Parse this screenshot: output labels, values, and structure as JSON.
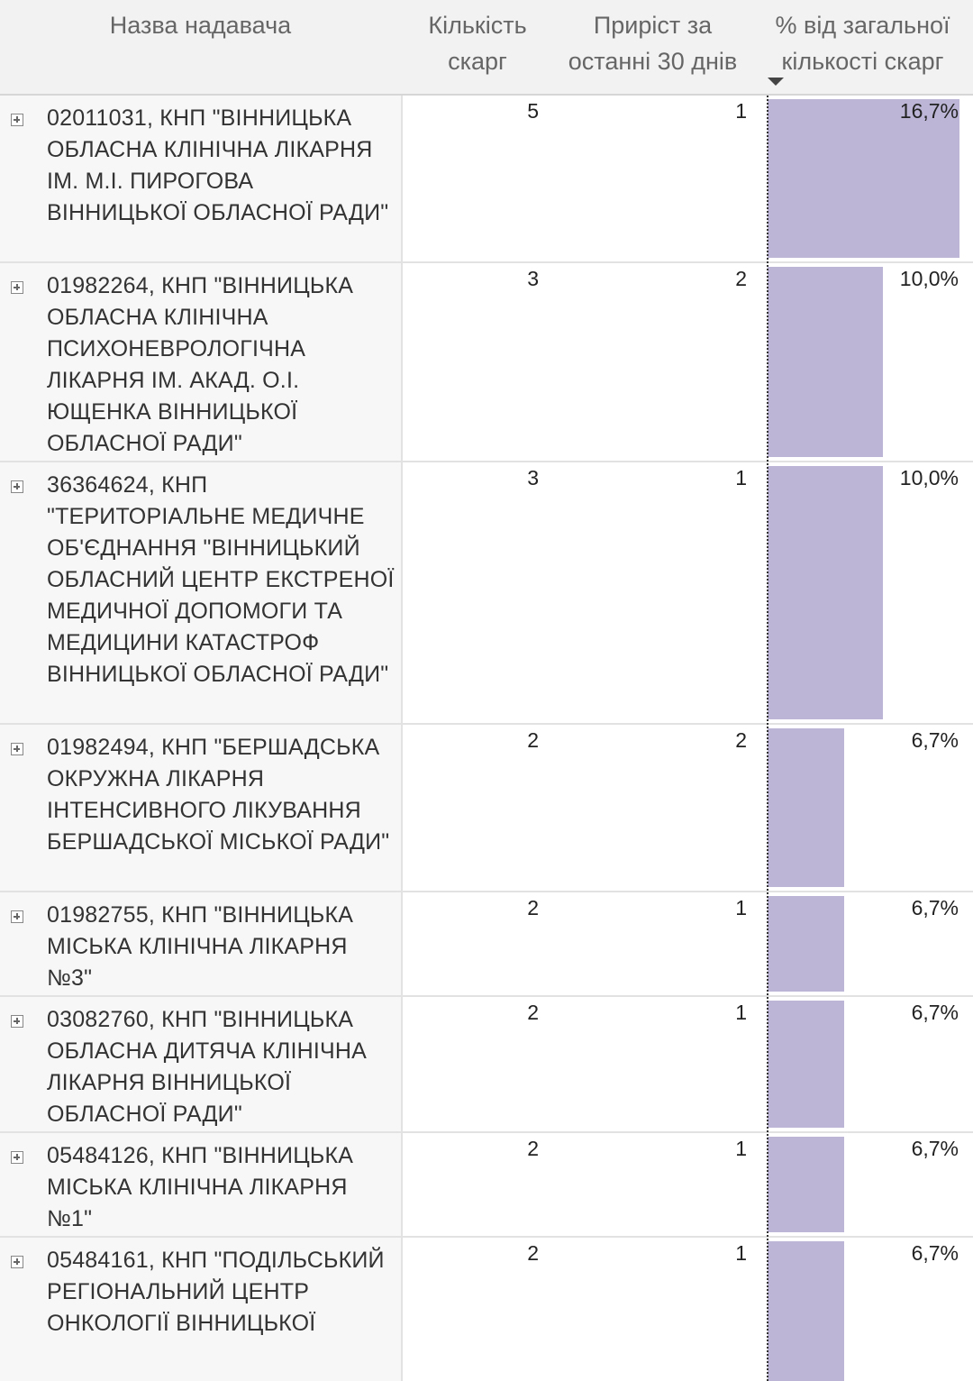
{
  "columns": {
    "name": "Назва надавача",
    "count": "Кількість\nскарг",
    "growth": "Приріст за\nостанні 30 днів",
    "percent": "% від загальної\nкількості скарг"
  },
  "bar_color": "#bcb5d6",
  "rows": [
    {
      "name": "02011031, КНП \"ВІННИЦЬКА ОБЛАСНА КЛІНІЧНА ЛІКАРНЯ ІМ. М.І. ПИРОГОВА ВІННИЦЬКОЇ ОБЛАСНОЇ РАДИ\"",
      "count": "5",
      "growth": "1",
      "percent_label": "16,7%",
      "percent": 16.7
    },
    {
      "name": "01982264, КНП \"ВІННИЦЬКА ОБЛАСНА КЛІНІЧНА ПСИХОНЕВРОЛОГІЧНА ЛІКАРНЯ ІМ. АКАД. О.І. ЮЩЕНКА ВІННИЦЬКОЇ ОБЛАСНОЇ РАДИ\"",
      "count": "3",
      "growth": "2",
      "percent_label": "10,0%",
      "percent": 10.0
    },
    {
      "name": "36364624, КНП \"ТЕРИТОРІАЛЬНЕ МЕДИЧНЕ ОБ'ЄДНАННЯ \"ВІННИЦЬКИЙ ОБЛАСНИЙ ЦЕНТР ЕКСТРЕНОЇ МЕДИЧНОЇ ДОПОМОГИ ТА МЕДИЦИНИ КАТАСТРОФ ВІННИЦЬКОЇ ОБЛАСНОЇ РАДИ\"",
      "count": "3",
      "growth": "1",
      "percent_label": "10,0%",
      "percent": 10.0
    },
    {
      "name": "01982494, КНП \"БЕРШАДСЬКА ОКРУЖНА ЛІКАРНЯ ІНТЕНСИВНОГО ЛІКУВАННЯ БЕРШАДСЬКОЇ МІСЬКОЇ РАДИ\"",
      "count": "2",
      "growth": "2",
      "percent_label": "6,7%",
      "percent": 6.7
    },
    {
      "name": "01982755, КНП \"ВІННИЦЬКА МІСЬКА КЛІНІЧНА ЛІКАРНЯ №3\"",
      "count": "2",
      "growth": "1",
      "percent_label": "6,7%",
      "percent": 6.7
    },
    {
      "name": "03082760, КНП \"ВІННИЦЬКА ОБЛАСНА ДИТЯЧА КЛІНІЧНА ЛІКАРНЯ ВІННИЦЬКОЇ ОБЛАСНОЇ РАДИ\"",
      "count": "2",
      "growth": "1",
      "percent_label": "6,7%",
      "percent": 6.7
    },
    {
      "name": "05484126, КНП \"ВІННИЦЬКА МІСЬКА КЛІНІЧНА ЛІКАРНЯ №1\"",
      "count": "2",
      "growth": "1",
      "percent_label": "6,7%",
      "percent": 6.7
    },
    {
      "name": "05484161, КНП \"ПОДІЛЬСЬКИЙ РЕГІОНАЛЬНИЙ ЦЕНТР ОНКОЛОГІЇ ВІННИЦЬКОЇ",
      "count": "2",
      "growth": "1",
      "percent_label": "6,7%",
      "percent": 6.7
    }
  ]
}
